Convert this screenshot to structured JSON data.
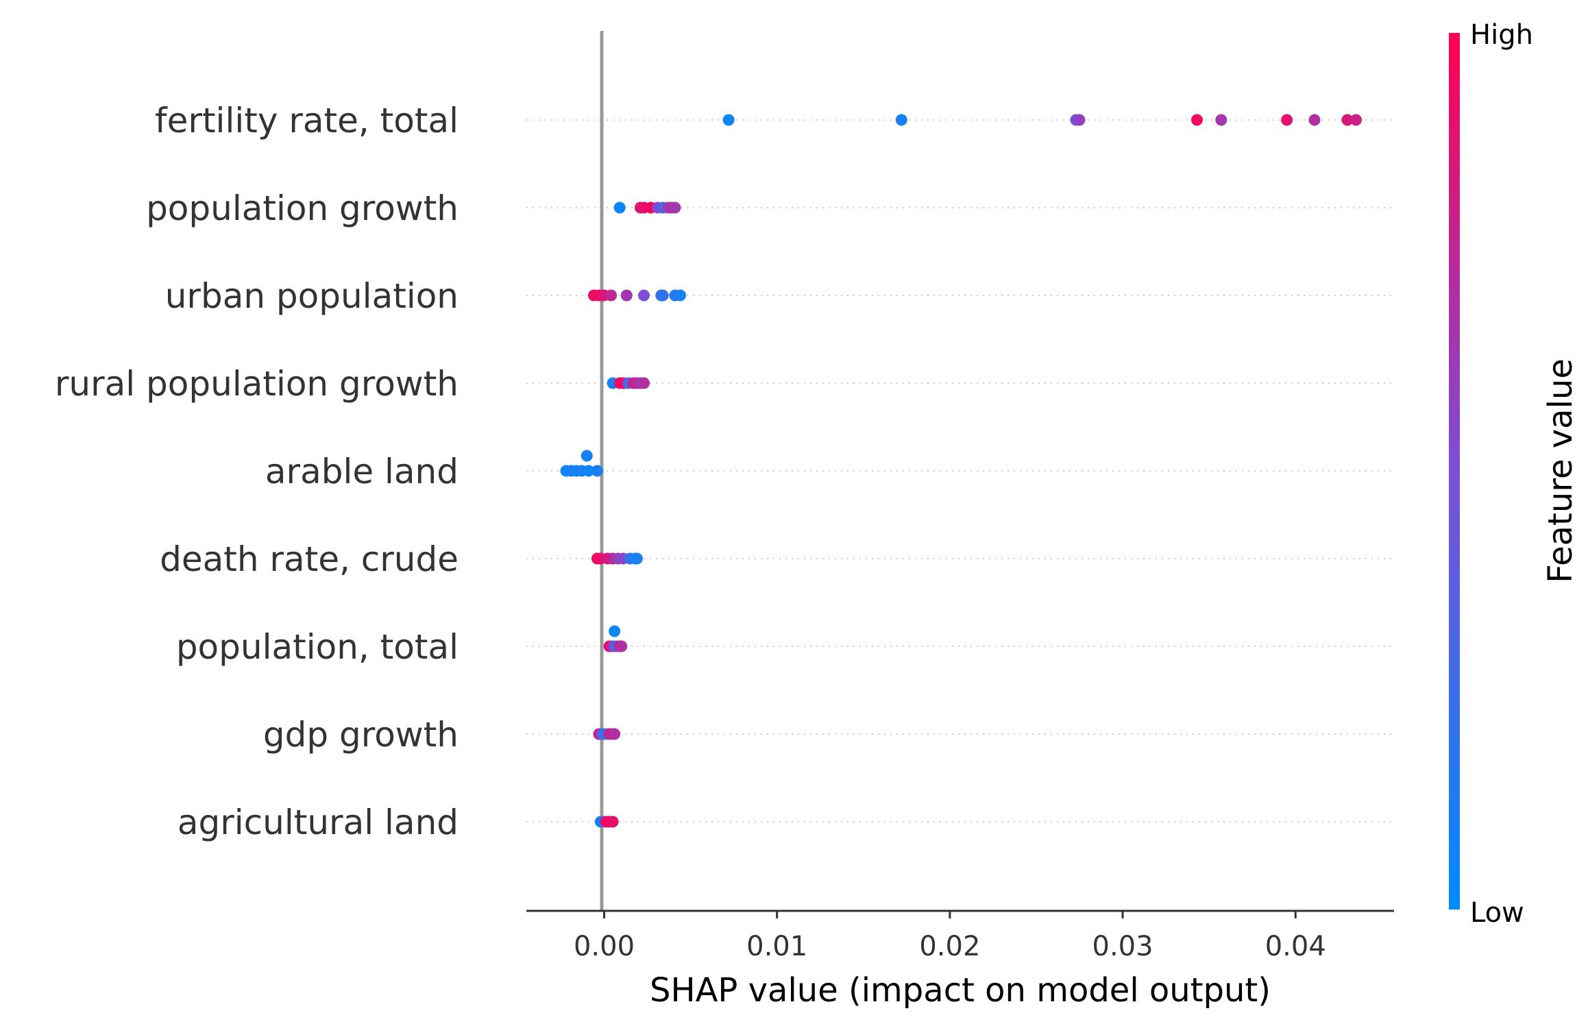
{
  "chart_data": {
    "type": "scatter",
    "title": "",
    "xlabel": "SHAP value (impact on model output)",
    "ylabel": "",
    "xlim": [
      -0.0045,
      0.0457
    ],
    "xticks": [
      0.0,
      0.01,
      0.02,
      0.03,
      0.04
    ],
    "xtick_labels": [
      "0.00",
      "0.01",
      "0.02",
      "0.03",
      "0.04"
    ],
    "grid": false,
    "colorbar": {
      "label": "Feature value",
      "high_label": "High",
      "low_label": "Low",
      "low_color": "#008bfb",
      "high_color": "#ff0052"
    },
    "features": [
      {
        "name": "fertility rate, total",
        "points": [
          {
            "x": 0.0072,
            "v": 0.05
          },
          {
            "x": 0.0172,
            "v": 0.1
          },
          {
            "x": 0.0273,
            "v": 0.45
          },
          {
            "x": 0.0275,
            "v": 0.6
          },
          {
            "x": 0.0343,
            "v": 0.95
          },
          {
            "x": 0.0357,
            "v": 0.65
          },
          {
            "x": 0.0395,
            "v": 0.9
          },
          {
            "x": 0.0411,
            "v": 0.7
          },
          {
            "x": 0.043,
            "v": 0.85
          },
          {
            "x": 0.0435,
            "v": 0.8
          }
        ]
      },
      {
        "name": "population growth",
        "points": [
          {
            "x": 0.0009,
            "v": 0.05
          },
          {
            "x": 0.0021,
            "v": 0.85
          },
          {
            "x": 0.0023,
            "v": 0.9
          },
          {
            "x": 0.0027,
            "v": 0.95
          },
          {
            "x": 0.0031,
            "v": 0.55
          },
          {
            "x": 0.0034,
            "v": 0.3
          },
          {
            "x": 0.0037,
            "v": 0.6
          },
          {
            "x": 0.0039,
            "v": 0.7
          },
          {
            "x": 0.0041,
            "v": 0.65
          }
        ]
      },
      {
        "name": "urban population",
        "points": [
          {
            "x": -0.0006,
            "v": 0.9
          },
          {
            "x": -0.0003,
            "v": 0.95
          },
          {
            "x": 0.0,
            "v": 0.85
          },
          {
            "x": 0.0004,
            "v": 0.75
          },
          {
            "x": 0.0013,
            "v": 0.65
          },
          {
            "x": 0.0023,
            "v": 0.5
          },
          {
            "x": 0.0033,
            "v": 0.25
          },
          {
            "x": 0.0034,
            "v": 0.2
          },
          {
            "x": 0.0041,
            "v": 0.15
          },
          {
            "x": 0.0044,
            "v": 0.08
          }
        ]
      },
      {
        "name": "rural population growth",
        "points": [
          {
            "x": 0.0005,
            "v": 0.1
          },
          {
            "x": 0.0009,
            "v": 0.9
          },
          {
            "x": 0.0011,
            "v": 0.95
          },
          {
            "x": 0.0014,
            "v": 0.3
          },
          {
            "x": 0.0017,
            "v": 0.8
          },
          {
            "x": 0.0019,
            "v": 0.75
          },
          {
            "x": 0.0021,
            "v": 0.65
          },
          {
            "x": 0.0023,
            "v": 0.7
          }
        ]
      },
      {
        "name": "arable land",
        "points": [
          {
            "x": -0.001,
            "v": 0.1,
            "dy": -1
          },
          {
            "x": -0.0022,
            "v": 0.05
          },
          {
            "x": -0.0019,
            "v": 0.1
          },
          {
            "x": -0.0016,
            "v": 0.08
          },
          {
            "x": -0.0013,
            "v": 0.12
          },
          {
            "x": -0.0009,
            "v": 0.05
          },
          {
            "x": -0.0004,
            "v": 0.1
          }
        ]
      },
      {
        "name": "death rate, crude",
        "points": [
          {
            "x": -0.0004,
            "v": 0.95
          },
          {
            "x": -0.0002,
            "v": 0.9
          },
          {
            "x": 0.0002,
            "v": 0.85
          },
          {
            "x": 0.0005,
            "v": 0.75
          },
          {
            "x": 0.0008,
            "v": 0.6
          },
          {
            "x": 0.0011,
            "v": 0.55
          },
          {
            "x": 0.0015,
            "v": 0.2
          },
          {
            "x": 0.0018,
            "v": 0.15
          },
          {
            "x": 0.0019,
            "v": 0.1
          }
        ]
      },
      {
        "name": "population, total",
        "points": [
          {
            "x": 0.0006,
            "v": 0.05,
            "dy": -1
          },
          {
            "x": 0.0003,
            "v": 0.9
          },
          {
            "x": 0.0005,
            "v": 0.6
          },
          {
            "x": 0.0007,
            "v": 0.3
          },
          {
            "x": 0.0009,
            "v": 0.8
          },
          {
            "x": 0.001,
            "v": 0.7
          }
        ]
      },
      {
        "name": "gdp growth",
        "points": [
          {
            "x": -0.0003,
            "v": 0.8
          },
          {
            "x": -0.0001,
            "v": 0.3
          },
          {
            "x": 0.0001,
            "v": 0.2
          },
          {
            "x": 0.0003,
            "v": 0.75
          },
          {
            "x": 0.0005,
            "v": 0.8
          },
          {
            "x": 0.0006,
            "v": 0.7
          }
        ]
      },
      {
        "name": "agricultural land",
        "points": [
          {
            "x": -0.0002,
            "v": 0.1
          },
          {
            "x": 0.0001,
            "v": 0.9
          },
          {
            "x": 0.0003,
            "v": 0.95
          },
          {
            "x": 0.0005,
            "v": 0.9
          }
        ]
      }
    ]
  }
}
